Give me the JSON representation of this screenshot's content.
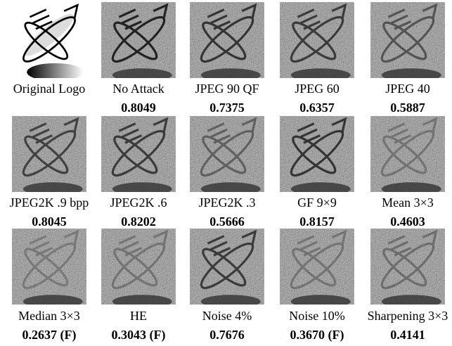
{
  "rows": [
    [
      {
        "label": "Original Logo"
      },
      {
        "label": "No Attack",
        "score": "0.8049"
      },
      {
        "label": "JPEG 90 QF",
        "score": "0.7375"
      },
      {
        "label": "JPEG 60",
        "score": "0.6357"
      },
      {
        "label": "JPEG 40",
        "score": "0.5887"
      }
    ],
    [
      {
        "label": "JPEG2K .9 bpp",
        "score": "0.8045"
      },
      {
        "label": "JPEG2K .6",
        "score": "0.8202"
      },
      {
        "label": "JPEG2K .3",
        "score": "0.5666"
      },
      {
        "label": "GF 9×9",
        "score": "0.8157"
      },
      {
        "label": "Mean 3×3",
        "score": "0.4603"
      }
    ],
    [
      {
        "label": "Median 3×3",
        "score": "0.2637 (F)"
      },
      {
        "label": "HE",
        "score": "0.3043 (F)"
      },
      {
        "label": "Noise 4%",
        "score": "0.7676"
      },
      {
        "label": "Noise 10%",
        "score": "0.3670 (F)"
      },
      {
        "label": "Sharpening 3×3",
        "score": "0.4141"
      }
    ]
  ]
}
